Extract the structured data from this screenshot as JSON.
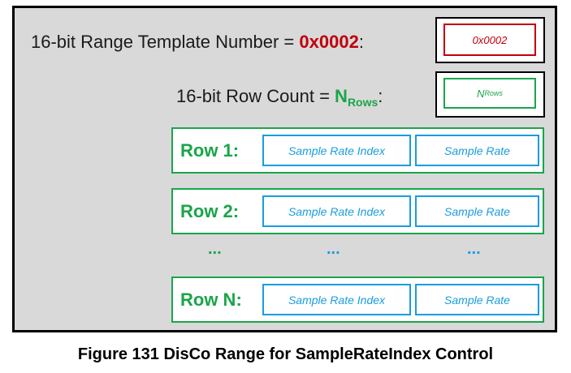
{
  "header": {
    "template_prefix": "16-bit Range Template Number = ",
    "template_value": "0x0002",
    "template_suffix": ":",
    "rowcount_prefix": "16-bit Row Count = ",
    "rowcount_N": "N",
    "rowcount_sub": "Rows",
    "rowcount_suffix": ":"
  },
  "boxes": {
    "template_value": "0x0002",
    "rowcount_N": "N",
    "rowcount_sub": "Rows"
  },
  "rows": [
    {
      "label": "Row 1:",
      "cell1": "Sample Rate Index",
      "cell2": "Sample Rate"
    },
    {
      "label": "Row 2:",
      "cell1": "Sample Rate Index",
      "cell2": "Sample Rate"
    },
    {
      "label": "Row N:",
      "cell1": "Sample Rate Index",
      "cell2": "Sample Rate"
    }
  ],
  "ellipsis": {
    "label_dots": "...",
    "cell1_dots": "...",
    "cell2_dots": "..."
  },
  "caption": "Figure 131 DisCo Range for SampleRateIndex Control",
  "colors": {
    "red": "#c0000c",
    "green": "#1aa54a",
    "blue": "#1a9ce0",
    "panel": "#d9d9d9"
  }
}
